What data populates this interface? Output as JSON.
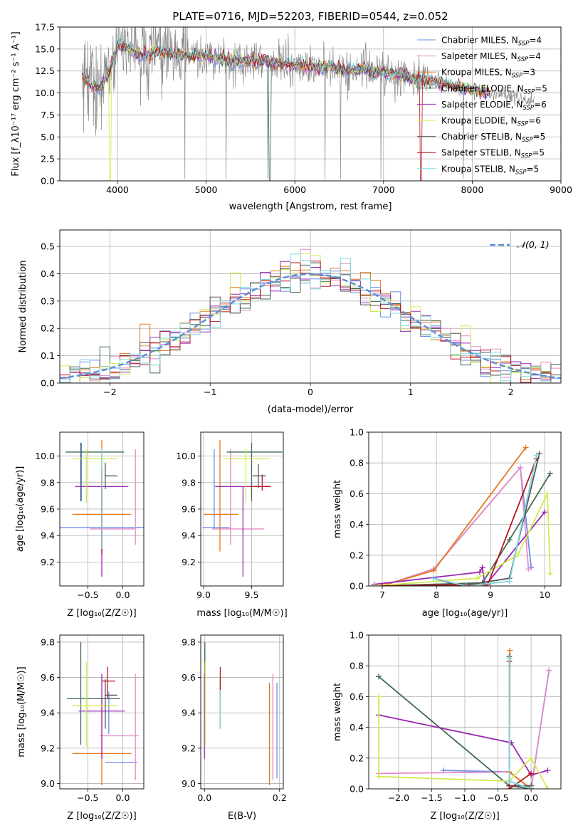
{
  "title": "PLATE=0716, MJD=52203, FIBERID=0544, z=0.052",
  "colors": {
    "Chabrier MILES": "#6b8ee8",
    "Salpeter MILES": "#e48bc8",
    "Kroupa MILES": "#e6781e",
    "Chabrier ELODIE": "#3f6b50",
    "Salpeter ELODIE": "#9b28b4",
    "Kroupa ELODIE": "#d2ec50",
    "Chabrier STELIB": "#555555",
    "Salpeter STELIB": "#b51823",
    "Kroupa STELIB": "#7dd8dc"
  },
  "chart_data": [
    {
      "id": "spectrum",
      "type": "line",
      "title": "PLATE=0716, MJD=52203, FIBERID=0544, z=0.052",
      "xlabel": "wavelength [Angstrom, rest frame]",
      "ylabel": "Flux [f_λ10⁻¹⁷ erg cm⁻² s⁻¹ A⁻¹]",
      "xlim": [
        3350,
        9000
      ],
      "ylim": [
        0,
        17.5
      ],
      "xticks": [
        4000,
        5000,
        6000,
        7000,
        8000,
        9000
      ],
      "yticks": [
        0.0,
        2.5,
        5.0,
        7.5,
        10.0,
        12.5,
        15.0,
        17.5
      ],
      "legend_position": "top-right",
      "legend": [
        {
          "name": "Chabrier MILES",
          "nssp": "4"
        },
        {
          "name": "Salpeter MILES",
          "nssp": "4"
        },
        {
          "name": "Kroupa MILES",
          "nssp": "3"
        },
        {
          "name": "Chabrier ELODIE",
          "nssp": "5"
        },
        {
          "name": "Salpeter ELODIE",
          "nssp": "6"
        },
        {
          "name": "Kroupa ELODIE",
          "nssp": "6"
        },
        {
          "name": "Chabrier STELIB",
          "nssp": "5"
        },
        {
          "name": "Salpeter STELIB",
          "nssp": "5"
        },
        {
          "name": "Kroupa STELIB",
          "nssp": "5"
        }
      ],
      "data_x": [
        3600,
        3700,
        3800,
        3900,
        4000,
        4100,
        4200,
        4300,
        4400,
        4600,
        4800,
        5000,
        5200,
        5400,
        5600,
        5800,
        6000,
        6200,
        6400,
        6600,
        6800,
        7000,
        7200,
        7400,
        7600,
        7800,
        8000,
        8200,
        8400,
        8600,
        8700
      ],
      "data_y": [
        12.0,
        11.0,
        10.5,
        12.0,
        15.5,
        15.2,
        14.6,
        14.1,
        14.7,
        14.5,
        14.2,
        14.2,
        13.9,
        13.6,
        13.6,
        13.4,
        13.2,
        13.0,
        12.9,
        12.6,
        12.6,
        12.3,
        12.0,
        11.5,
        11.2,
        10.8,
        10.4,
        10.0,
        9.6,
        9.2,
        9.1
      ]
    },
    {
      "id": "residuals",
      "type": "step",
      "xlabel": "(data-model)/error",
      "ylabel": "Normed distribution",
      "xlim": [
        -2.5,
        2.5
      ],
      "ylim": [
        0,
        0.56
      ],
      "xticks": [
        -2,
        -1,
        0,
        1,
        2
      ],
      "yticks": [
        0.0,
        0.1,
        0.2,
        0.3,
        0.4,
        0.5
      ],
      "legend": [
        {
          "name": "𝒩(0, 1)"
        }
      ],
      "legend_position": "top-right",
      "curve": {
        "mean": 0,
        "sigma": 1
      }
    },
    {
      "id": "age-vs-z",
      "type": "errorbar",
      "xlabel": "Z [log₁₀(Z/Z☉)]",
      "ylabel": "age  [log₁₀(age/yr)]",
      "xlim": [
        -0.9,
        0.3
      ],
      "ylim": [
        9.02,
        10.18
      ],
      "xticks": [
        -0.5,
        0.0
      ],
      "yticks": [
        9.2,
        9.4,
        9.6,
        9.8,
        10.0
      ],
      "bars": [
        {
          "series": "Chabrier MILES",
          "x": -0.35,
          "xerr": 0.65,
          "y": 9.46,
          "yerr": 0.0
        },
        {
          "series": "Chabrier MILES",
          "x": -0.59,
          "xerr": 0.0,
          "y": 9.88,
          "yerr": 0.22
        },
        {
          "series": "Salpeter MILES",
          "x": 0.18,
          "xerr": 0.0,
          "y": 9.69,
          "yerr": 0.36
        },
        {
          "series": "Salpeter MILES",
          "x": -0.15,
          "xerr": 0.32,
          "y": 9.45,
          "yerr": 0.0
        },
        {
          "series": "Kroupa MILES",
          "x": -0.3,
          "xerr": 0.42,
          "y": 9.56,
          "yerr": 0.0
        },
        {
          "series": "Kroupa MILES",
          "x": -0.3,
          "xerr": 0.0,
          "y": 9.7,
          "yerr": 0.42
        },
        {
          "series": "Chabrier ELODIE",
          "x": -0.4,
          "xerr": 0.42,
          "y": 10.03,
          "yerr": 0.0
        },
        {
          "series": "Chabrier ELODIE",
          "x": -0.6,
          "xerr": 0.0,
          "y": 9.88,
          "yerr": 0.22
        },
        {
          "series": "Salpeter ELODIE",
          "x": -0.3,
          "xerr": 0.38,
          "y": 9.77,
          "yerr": 0.0
        },
        {
          "series": "Salpeter ELODIE",
          "x": -0.3,
          "xerr": 0.0,
          "y": 9.43,
          "yerr": 0.34
        },
        {
          "series": "Kroupa ELODIE",
          "x": -0.4,
          "xerr": 0.32,
          "y": 9.98,
          "yerr": 0.0
        },
        {
          "series": "Kroupa ELODIE",
          "x": -0.52,
          "xerr": 0.0,
          "y": 9.85,
          "yerr": 0.2
        },
        {
          "series": "Chabrier STELIB",
          "x": -0.25,
          "xerr": 0.0,
          "y": 9.85,
          "yerr": 0.1
        },
        {
          "series": "Chabrier STELIB",
          "x": -0.17,
          "xerr": 0.09,
          "y": 9.85,
          "yerr": 0.0
        },
        {
          "series": "Salpeter STELIB",
          "x": -0.3,
          "xerr": 0.0,
          "y": 9.58,
          "yerr": 0.32
        },
        {
          "series": "Kroupa STELIB",
          "x": -0.3,
          "xerr": 0.0,
          "y": 9.68,
          "yerr": 0.38
        }
      ]
    },
    {
      "id": "age-vs-mass",
      "type": "errorbar",
      "xlabel": "mass [log₁₀(M/M☉)]",
      "xlim": [
        8.97,
        9.83
      ],
      "ylim": [
        9.02,
        10.18
      ],
      "xticks": [
        9.0,
        9.5
      ],
      "yticks": [
        9.2,
        9.4,
        9.6,
        9.8,
        10.0
      ],
      "bars": [
        {
          "series": "Chabrier MILES",
          "x": 9.13,
          "xerr": 0.14,
          "y": 9.46,
          "yerr": 0.0
        },
        {
          "series": "Chabrier MILES",
          "x": 9.11,
          "xerr": 0.0,
          "y": 9.75,
          "yerr": 0.3
        },
        {
          "series": "Salpeter MILES",
          "x": 9.28,
          "xerr": 0.0,
          "y": 9.69,
          "yerr": 0.36
        },
        {
          "series": "Salpeter MILES",
          "x": 9.36,
          "xerr": 0.27,
          "y": 9.45,
          "yerr": 0.0
        },
        {
          "series": "Kroupa MILES",
          "x": 9.17,
          "xerr": 0.0,
          "y": 9.7,
          "yerr": 0.42
        },
        {
          "series": "Kroupa MILES",
          "x": 9.18,
          "xerr": 0.18,
          "y": 9.56,
          "yerr": 0.0
        },
        {
          "series": "Chabrier ELODIE",
          "x": 9.5,
          "xerr": 0.0,
          "y": 9.88,
          "yerr": 0.22
        },
        {
          "series": "Chabrier ELODIE",
          "x": 9.53,
          "xerr": 0.29,
          "y": 10.03,
          "yerr": 0.0
        },
        {
          "series": "Salpeter ELODIE",
          "x": 9.41,
          "xerr": 0.0,
          "y": 9.43,
          "yerr": 0.34
        },
        {
          "series": "Salpeter ELODIE",
          "x": 9.41,
          "xerr": 0.29,
          "y": 9.77,
          "yerr": 0.0
        },
        {
          "series": "Kroupa ELODIE",
          "x": 9.44,
          "xerr": 0.0,
          "y": 9.85,
          "yerr": 0.2
        },
        {
          "series": "Kroupa ELODIE",
          "x": 9.45,
          "xerr": 0.24,
          "y": 9.98,
          "yerr": 0.0
        },
        {
          "series": "Chabrier STELIB",
          "x": 9.58,
          "xerr": 0.07,
          "y": 9.85,
          "yerr": 0.0
        },
        {
          "series": "Chabrier STELIB",
          "x": 9.57,
          "xerr": 0.0,
          "y": 9.85,
          "yerr": 0.09
        },
        {
          "series": "Salpeter STELIB",
          "x": 9.61,
          "xerr": 0.0,
          "y": 9.8,
          "yerr": 0.06
        },
        {
          "series": "Salpeter STELIB",
          "x": 9.59,
          "xerr": 0.11,
          "y": 9.77,
          "yerr": 0.0
        }
      ]
    },
    {
      "id": "weight-vs-age",
      "type": "line",
      "xlabel": "age  [log₁₀(age/yr)]",
      "ylabel": "mass weight",
      "xlim": [
        6.75,
        10.3
      ],
      "ylim": [
        0,
        1.0
      ],
      "xticks": [
        7,
        8,
        9,
        10
      ],
      "yticks": [
        0.0,
        0.2,
        0.4,
        0.6,
        0.8,
        1.0
      ],
      "series": [
        {
          "name": "Chabrier MILES",
          "x": [
            7.0,
            7.95,
            9.55,
            9.75
          ],
          "y": [
            0.0,
            0.11,
            0.77,
            0.12
          ]
        },
        {
          "name": "Salpeter MILES",
          "x": [
            7.0,
            7.95,
            9.55,
            9.7
          ],
          "y": [
            0.0,
            0.11,
            0.77,
            0.11
          ]
        },
        {
          "name": "Kroupa MILES",
          "x": [
            6.98,
            7.95,
            9.65
          ],
          "y": [
            0.0,
            0.1,
            0.9
          ]
        },
        {
          "name": "Chabrier ELODIE",
          "x": [
            6.85,
            8.85,
            9.35,
            10.1
          ],
          "y": [
            0.0,
            0.02,
            0.3,
            0.73
          ]
        },
        {
          "name": "Salpeter ELODIE",
          "x": [
            6.85,
            8.8,
            8.85,
            8.9,
            10.0
          ],
          "y": [
            0.01,
            0.09,
            0.12,
            0.0,
            0.48
          ]
        },
        {
          "name": "Kroupa ELODIE",
          "x": [
            6.85,
            8.75,
            9.5,
            10.05,
            10.1
          ],
          "y": [
            0.0,
            0.05,
            0.2,
            0.6,
            0.08
          ]
        },
        {
          "name": "Chabrier STELIB",
          "x": [
            7.95,
            8.45,
            9.35,
            9.9
          ],
          "y": [
            0.05,
            0.0,
            0.05,
            0.86
          ]
        },
        {
          "name": "Salpeter STELIB",
          "x": [
            7.0,
            8.95,
            9.85
          ],
          "y": [
            0.0,
            0.01,
            0.83
          ]
        },
        {
          "name": "Kroupa STELIB",
          "x": [
            7.95,
            8.55,
            9.35,
            9.85
          ],
          "y": [
            0.05,
            0.0,
            0.03,
            0.85
          ]
        }
      ]
    },
    {
      "id": "mass-vs-z",
      "type": "errorbar",
      "xlabel": "Z [log₁₀(Z/Z☉)]",
      "ylabel": "mass [log₁₀(M/M☉)]",
      "xlim": [
        -0.9,
        0.3
      ],
      "ylim": [
        8.97,
        9.84
      ],
      "xticks": [
        -0.5,
        0.0
      ],
      "yticks": [
        9.0,
        9.2,
        9.4,
        9.6,
        9.8
      ],
      "bars": [
        {
          "series": "Chabrier MILES",
          "x": -0.02,
          "xerr": 0.23,
          "y": 9.12,
          "yerr": 0.0
        },
        {
          "series": "Chabrier MILES",
          "x": -0.2,
          "xerr": 0.0,
          "y": 9.4,
          "yerr": 0.12
        },
        {
          "series": "Salpeter MILES",
          "x": 0.18,
          "xerr": 0.0,
          "y": 9.32,
          "yerr": 0.3
        },
        {
          "series": "Salpeter MILES",
          "x": -0.05,
          "xerr": 0.28,
          "y": 9.27,
          "yerr": 0.0
        },
        {
          "series": "Kroupa MILES",
          "x": -0.3,
          "xerr": 0.0,
          "y": 9.23,
          "yerr": 0.24
        },
        {
          "series": "Kroupa MILES",
          "x": -0.3,
          "xerr": 0.42,
          "y": 9.17,
          "yerr": 0.0
        },
        {
          "series": "Chabrier ELODIE",
          "x": -0.6,
          "xerr": 0.0,
          "y": 9.51,
          "yerr": 0.29
        },
        {
          "series": "Chabrier ELODIE",
          "x": -0.42,
          "xerr": 0.38,
          "y": 9.48,
          "yerr": 0.0
        },
        {
          "series": "Salpeter ELODIE",
          "x": -0.3,
          "xerr": 0.0,
          "y": 9.38,
          "yerr": 0.24
        },
        {
          "series": "Salpeter ELODIE",
          "x": -0.3,
          "xerr": 0.33,
          "y": 9.41,
          "yerr": 0.0
        },
        {
          "series": "Kroupa ELODIE",
          "x": -0.52,
          "xerr": 0.0,
          "y": 9.45,
          "yerr": 0.24
        },
        {
          "series": "Kroupa ELODIE",
          "x": -0.4,
          "xerr": 0.32,
          "y": 9.44,
          "yerr": 0.0
        },
        {
          "series": "Chabrier STELIB",
          "x": -0.25,
          "xerr": 0.0,
          "y": 9.45,
          "yerr": 0.14
        },
        {
          "series": "Chabrier STELIB",
          "x": -0.17,
          "xerr": 0.09,
          "y": 9.5,
          "yerr": 0.0
        },
        {
          "series": "Salpeter STELIB",
          "x": -0.22,
          "xerr": 0.0,
          "y": 9.57,
          "yerr": 0.09
        },
        {
          "series": "Salpeter STELIB",
          "x": -0.2,
          "xerr": 0.09,
          "y": 9.58,
          "yerr": 0.0
        }
      ]
    },
    {
      "id": "mass-vs-ebv",
      "type": "errorbar",
      "xlabel": "E(B-V)",
      "xlim": [
        -0.01,
        0.21
      ],
      "ylim": [
        8.97,
        9.84
      ],
      "xticks": [
        0.0,
        0.2
      ],
      "yticks": [
        9.0,
        9.2,
        9.4,
        9.6,
        9.8
      ],
      "bars": [
        {
          "series": "Chabrier MILES",
          "x": 0.193,
          "xerr": 0.0,
          "y": 9.3,
          "yerr": 0.27
        },
        {
          "series": "Salpeter MILES",
          "x": 0.182,
          "xerr": 0.0,
          "y": 9.32,
          "yerr": 0.3
        },
        {
          "series": "Kroupa MILES",
          "x": 0.173,
          "xerr": 0.0,
          "y": 9.28,
          "yerr": 0.29
        },
        {
          "series": "Chabrier ELODIE",
          "x": 0.001,
          "xerr": 0.0,
          "y": 9.51,
          "yerr": 0.29
        },
        {
          "series": "Salpeter ELODIE",
          "x": 0.0,
          "xerr": 0.0,
          "y": 9.38,
          "yerr": 0.24
        },
        {
          "series": "Kroupa ELODIE",
          "x": 0.002,
          "xerr": 0.0,
          "y": 9.45,
          "yerr": 0.24
        },
        {
          "series": "Chabrier STELIB",
          "x": 0.042,
          "xerr": 0.0,
          "y": 9.45,
          "yerr": 0.14
        },
        {
          "series": "Salpeter STELIB",
          "x": 0.042,
          "xerr": 0.0,
          "y": 9.58,
          "yerr": 0.08
        },
        {
          "series": "Kroupa STELIB",
          "x": 0.042,
          "xerr": 0.0,
          "y": 9.42,
          "yerr": 0.11
        }
      ]
    },
    {
      "id": "weight-vs-z",
      "type": "line",
      "xlabel": "Z [log₁₀(Z/Z☉)]",
      "ylabel": "mass weight",
      "xlim": [
        -2.45,
        0.45
      ],
      "ylim": [
        0,
        1.0
      ],
      "xticks": [
        -2.0,
        -1.5,
        -1.0,
        -0.5,
        0.0
      ],
      "yticks": [
        0.0,
        0.2,
        0.4,
        0.6,
        0.8,
        1.0
      ],
      "series": [
        {
          "name": "Chabrier MILES",
          "x": [
            -1.32,
            -0.33,
            0.0,
            0.27
          ],
          "y": [
            0.12,
            0.11,
            0.0,
            0.77
          ]
        },
        {
          "name": "Salpeter MILES",
          "x": [
            -2.3,
            -0.33,
            0.0,
            0.27
          ],
          "y": [
            0.1,
            0.11,
            0.0,
            0.77
          ]
        },
        {
          "name": "Kroupa MILES",
          "x": [
            -0.32,
            -0.33,
            0.0
          ],
          "y": [
            0.9,
            0.11,
            0.0
          ]
        },
        {
          "name": "Chabrier ELODIE",
          "x": [
            -2.3,
            -0.33,
            0.0
          ],
          "y": [
            0.73,
            0.02,
            0.0
          ]
        },
        {
          "name": "Salpeter ELODIE",
          "x": [
            -2.3,
            -0.3,
            0.0,
            0.25
          ],
          "y": [
            0.48,
            0.3,
            0.09,
            0.12
          ]
        },
        {
          "name": "Kroupa ELODIE",
          "x": [
            -2.3,
            -2.3,
            -0.33,
            0.0,
            0.25
          ],
          "y": [
            0.6,
            0.08,
            0.05,
            0.2,
            0.0
          ]
        },
        {
          "name": "Chabrier STELIB",
          "x": [
            -0.33,
            -0.33,
            0.0
          ],
          "y": [
            0.86,
            0.02,
            0.02
          ]
        },
        {
          "name": "Salpeter STELIB",
          "x": [
            -0.33,
            -0.33,
            0.0
          ],
          "y": [
            0.83,
            0.0,
            0.1
          ]
        },
        {
          "name": "Kroupa STELIB",
          "x": [
            -0.33,
            -0.33,
            0.0
          ],
          "y": [
            0.85,
            0.05,
            0.0
          ]
        }
      ]
    }
  ]
}
